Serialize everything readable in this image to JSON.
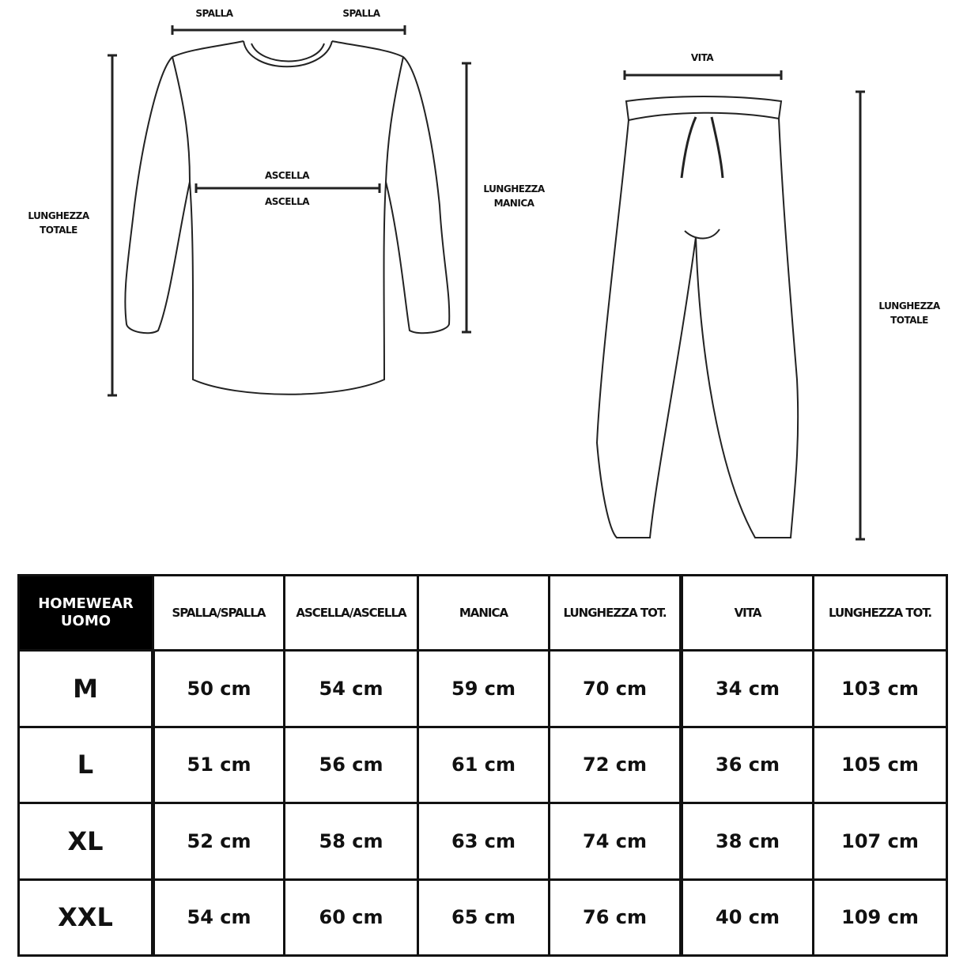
{
  "top_diagram": {
    "shoulder_left": "SPALLA",
    "shoulder_right": "SPALLA",
    "armpit_top": "ASCELLA",
    "armpit_bottom": "ASCELLA",
    "total_length_top": "LUNGHEZZA TOTALE",
    "sleeve_length": "LUNGHEZZA MANICA"
  },
  "bottom_diagram": {
    "waist": "VITA",
    "total_length": "LUNGHEZZA TOTALE"
  },
  "table": {
    "corner": "HOMEWEAR UOMO",
    "headers": [
      "SPALLA/SPALLA",
      "ASCELLA/ASCELLA",
      "MANICA",
      "LUNGHEZZA TOT.",
      "VITA",
      "LUNGHEZZA TOT."
    ],
    "rows": [
      {
        "size": "M",
        "values": [
          "50 cm",
          "54 cm",
          "59 cm",
          "70 cm",
          "34 cm",
          "103 cm"
        ]
      },
      {
        "size": "L",
        "values": [
          "51 cm",
          "56 cm",
          "61 cm",
          "72 cm",
          "36 cm",
          "105 cm"
        ]
      },
      {
        "size": "XL",
        "values": [
          "52 cm",
          "58 cm",
          "63 cm",
          "74 cm",
          "38 cm",
          "107 cm"
        ]
      },
      {
        "size": "XXL",
        "values": [
          "54 cm",
          "60 cm",
          "65 cm",
          "76 cm",
          "40 cm",
          "109 cm"
        ]
      }
    ]
  }
}
